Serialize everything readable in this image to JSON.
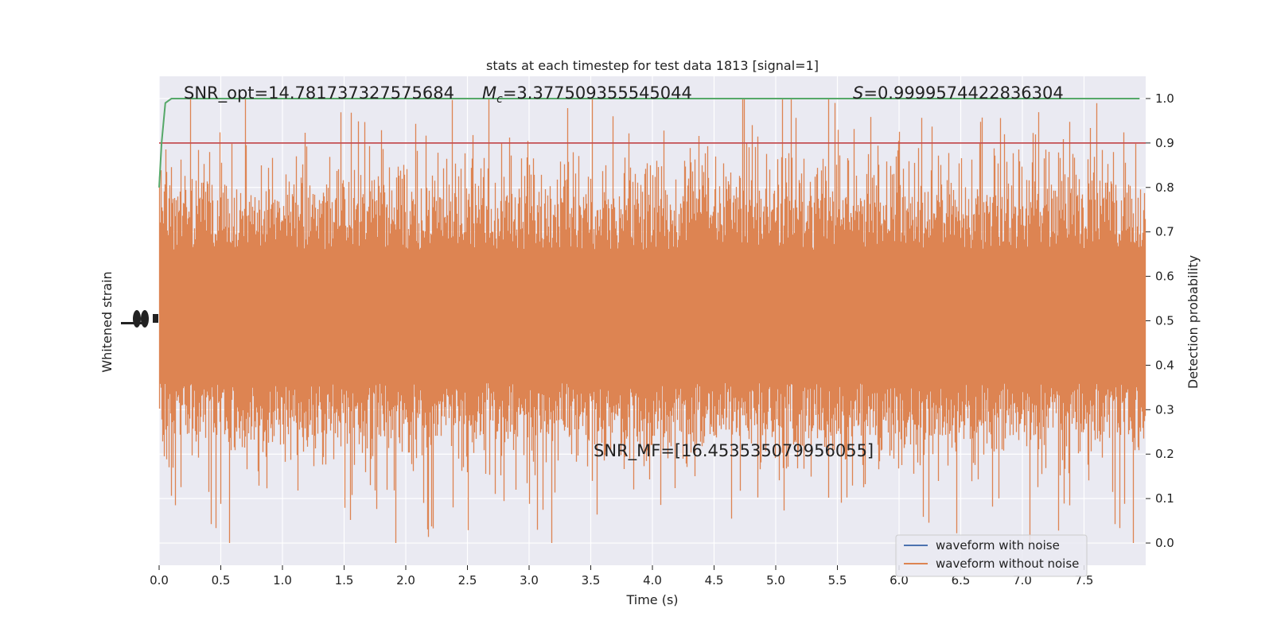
{
  "chart_data": {
    "type": "line",
    "title": "stats at each timestep for test data 1813 [signal=1]",
    "xlabel": "Time (s)",
    "ylabel_left": "Whitened strain",
    "ylabel_right": "Detection probability",
    "xlim": [
      0.0,
      8.0
    ],
    "ylim_right": [
      -0.05,
      1.05
    ],
    "x_ticks": [
      "0.0",
      "0.5",
      "1.0",
      "1.5",
      "2.0",
      "2.5",
      "3.0",
      "3.5",
      "4.0",
      "4.5",
      "5.0",
      "5.5",
      "6.0",
      "6.5",
      "7.0",
      "7.5"
    ],
    "y_ticks_right": [
      "0.0",
      "0.1",
      "0.2",
      "0.3",
      "0.4",
      "0.5",
      "0.6",
      "0.7",
      "0.8",
      "0.9",
      "1.0"
    ],
    "grid": true,
    "legend_position": "lower-right",
    "series": [
      {
        "name": "waveform with noise",
        "color": "#4c72b0"
      },
      {
        "name": "waveform without noise",
        "color": "#dd8452"
      }
    ],
    "detection_probability": {
      "color": "#55a868",
      "x": [
        0.0,
        0.02,
        0.05,
        0.1,
        0.2,
        0.5,
        1.0,
        2.0,
        4.0,
        6.0,
        7.95
      ],
      "y": [
        0.8,
        0.9,
        0.99,
        1.0,
        1.0,
        1.0,
        1.0,
        1.0,
        1.0,
        1.0,
        1.0
      ]
    },
    "threshold": {
      "value": 0.9,
      "color": "#c44e52"
    },
    "annotations": {
      "snr_opt": "SNR_opt=14.781737327575684",
      "mc_prefix": "M",
      "mc_sub": "c",
      "mc_value": "=3.377509355545044",
      "s_prefix": "S",
      "s_value": "=0.9999574422836304",
      "snr_mf": "SNR_MF=[16.453535079956055]"
    }
  }
}
